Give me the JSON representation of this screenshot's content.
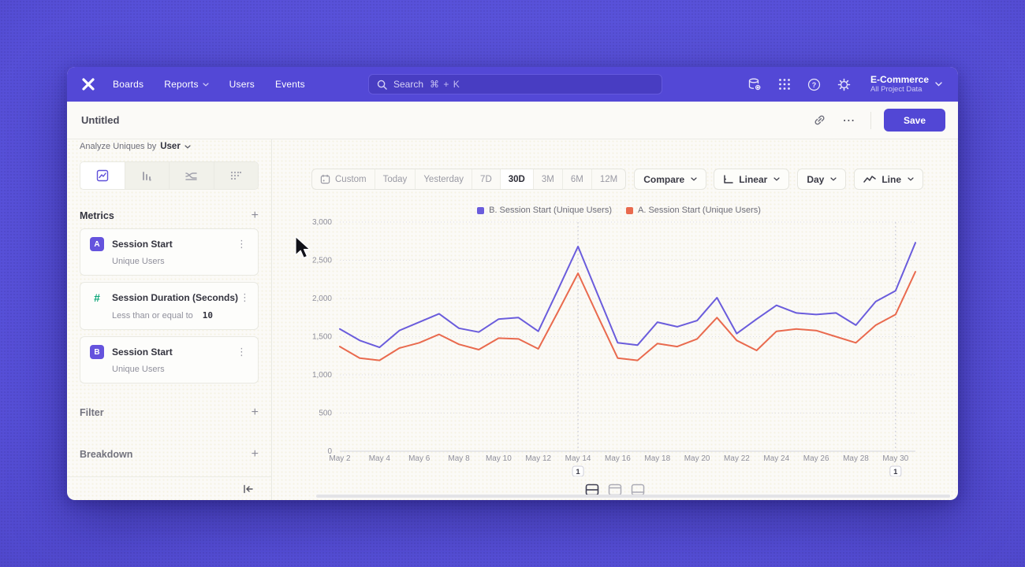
{
  "icons": {
    "kebab": "⋮",
    "more": "⋯",
    "plus": "+"
  },
  "colors": {
    "accent": "#5247d5",
    "nav_bg": "#5348d6",
    "series_b": "#6a5cdc",
    "series_a": "#e96a4e",
    "badge_purple": "#6553dd",
    "badge_green": "#0ca678"
  },
  "nav": {
    "menu": [
      {
        "label": "Boards",
        "chevron": false
      },
      {
        "label": "Reports",
        "chevron": true
      },
      {
        "label": "Users",
        "chevron": false
      },
      {
        "label": "Events",
        "chevron": false
      }
    ],
    "search": {
      "label": "Search",
      "shortcut": "⌘ + K"
    },
    "project": {
      "name": "E-Commerce",
      "subtitle": "All Project Data"
    }
  },
  "titlebar": {
    "title": "Untitled",
    "save_label": "Save"
  },
  "sidebar": {
    "analyze_prefix": "Analyze Uniques by",
    "analyze_value": "User",
    "metrics_title": "Metrics",
    "metrics": [
      {
        "badge": "A",
        "badge_style": "solid",
        "badge_color": "#6553dd",
        "title": "Session Start",
        "subtitle": "Unique Users"
      },
      {
        "badge": "#",
        "badge_style": "plain",
        "badge_color": "#0ca678",
        "title": "Session Duration (Seconds)",
        "subtitle": "Less than or equal to",
        "value": "10"
      },
      {
        "badge": "B",
        "badge_style": "solid",
        "badge_color": "#6553dd",
        "title": "Session Start",
        "subtitle": "Unique Users"
      }
    ],
    "sections": [
      {
        "label": "Filter"
      },
      {
        "label": "Breakdown"
      }
    ]
  },
  "controls": {
    "ranges": [
      "Custom",
      "Today",
      "Yesterday",
      "7D",
      "30D",
      "3M",
      "6M",
      "12M"
    ],
    "selected_range": "30D",
    "compare_label": "Compare",
    "scale_label": "Linear",
    "interval_label": "Day",
    "chart_type_label": "Line"
  },
  "chart_data": {
    "type": "line",
    "x": [
      "May 2",
      "May 3",
      "May 4",
      "May 5",
      "May 6",
      "May 7",
      "May 8",
      "May 9",
      "May 10",
      "May 11",
      "May 12",
      "May 13",
      "May 14",
      "May 15",
      "May 16",
      "May 17",
      "May 18",
      "May 19",
      "May 20",
      "May 21",
      "May 22",
      "May 23",
      "May 24",
      "May 25",
      "May 26",
      "May 27",
      "May 28",
      "May 29",
      "May 30",
      "May 31"
    ],
    "tick_every": 2,
    "series": [
      {
        "name": "B. Session Start (Unique Users)",
        "color": "#6a5cdc",
        "values": [
          1600,
          1450,
          1360,
          1580,
          1690,
          1800,
          1610,
          1560,
          1730,
          1750,
          1570,
          2120,
          2680,
          2050,
          1420,
          1390,
          1690,
          1630,
          1710,
          2010,
          1540,
          1730,
          1910,
          1810,
          1790,
          1810,
          1650,
          1960,
          2100,
          2730
        ]
      },
      {
        "name": "A. Session Start (Unique Users)",
        "color": "#e96a4e",
        "values": [
          1370,
          1220,
          1190,
          1350,
          1420,
          1530,
          1400,
          1330,
          1480,
          1470,
          1340,
          1830,
          2330,
          1770,
          1220,
          1190,
          1410,
          1370,
          1470,
          1750,
          1450,
          1320,
          1570,
          1600,
          1580,
          1500,
          1420,
          1650,
          1790,
          2350
        ]
      }
    ],
    "ylim": [
      0,
      3000
    ],
    "yticks": [
      0,
      500,
      1000,
      1500,
      2000,
      2500,
      3000
    ],
    "ytick_labels": [
      "0",
      "500",
      "1,000",
      "1,500",
      "2,000",
      "2,500",
      "3,000"
    ],
    "grid": "horizontal-dotted",
    "legend_position": "top-center",
    "annotations": [
      {
        "index": 12,
        "label": "1"
      },
      {
        "index": 28,
        "label": "1"
      }
    ]
  }
}
